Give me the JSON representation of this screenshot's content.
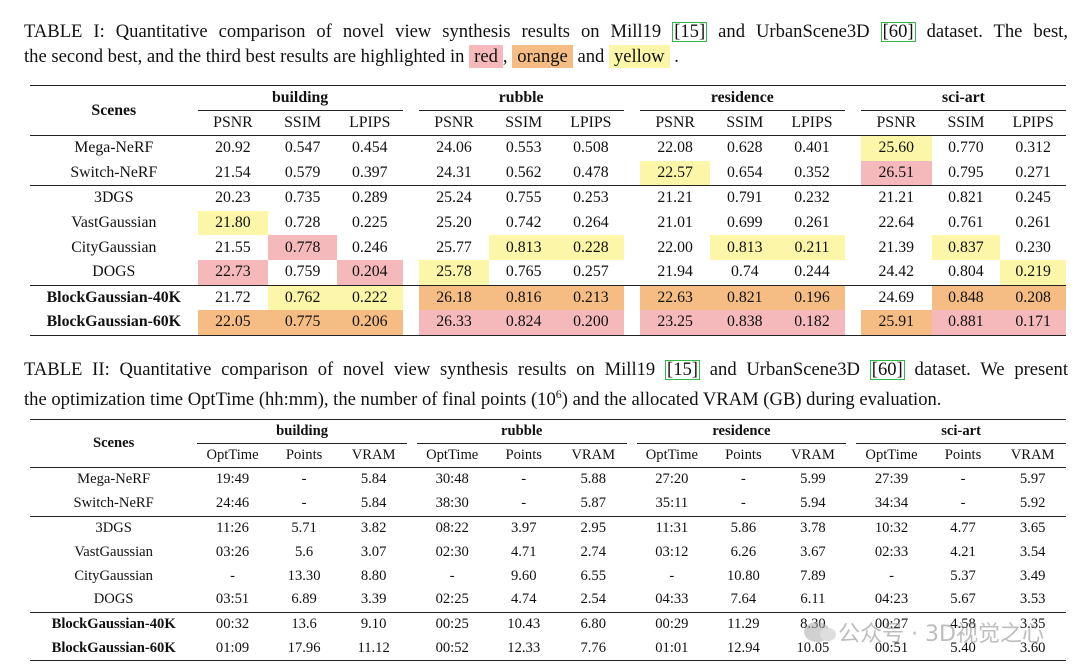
{
  "table1": {
    "caption": {
      "prefix": "TABLE I: Quantitative comparison of novel view synthesis results on Mill19",
      "cite1": "[15]",
      "mid": "and UrbanScene3D",
      "cite2": "[60]",
      "suffix": "dataset. The best,",
      "line2a": "the second best, and the third best results are highlighted in",
      "red": "red",
      "comma": ",",
      "orange": "orange",
      "and": "and",
      "yellow": "yellow",
      "end": "."
    },
    "scenes_label": "Scenes",
    "groups": [
      "building",
      "rubble",
      "residence",
      "sci-art"
    ],
    "metrics": [
      "PSNR",
      "SSIM",
      "LPIPS"
    ],
    "rows": [
      {
        "name": "Mega-NeRF",
        "bold": false,
        "sep": "none",
        "cells": [
          [
            "20.92",
            0
          ],
          [
            "0.547",
            0
          ],
          [
            "0.454",
            0
          ],
          [
            "24.06",
            0
          ],
          [
            "0.553",
            0
          ],
          [
            "0.508",
            0
          ],
          [
            "22.08",
            0
          ],
          [
            "0.628",
            0
          ],
          [
            "0.401",
            0
          ],
          [
            "25.60",
            3
          ],
          [
            "0.770",
            0
          ],
          [
            "0.312",
            0
          ]
        ]
      },
      {
        "name": "Switch-NeRF",
        "bold": false,
        "sep": "none",
        "cells": [
          [
            "21.54",
            0
          ],
          [
            "0.579",
            0
          ],
          [
            "0.397",
            0
          ],
          [
            "24.31",
            0
          ],
          [
            "0.562",
            0
          ],
          [
            "0.478",
            0
          ],
          [
            "22.57",
            3
          ],
          [
            "0.654",
            0
          ],
          [
            "0.352",
            0
          ],
          [
            "26.51",
            1
          ],
          [
            "0.795",
            0
          ],
          [
            "0.271",
            0
          ]
        ]
      },
      {
        "name": "3DGS",
        "bold": false,
        "sep": "full",
        "cells": [
          [
            "20.23",
            0
          ],
          [
            "0.735",
            0
          ],
          [
            "0.289",
            0
          ],
          [
            "25.24",
            0
          ],
          [
            "0.755",
            0
          ],
          [
            "0.253",
            0
          ],
          [
            "21.21",
            0
          ],
          [
            "0.791",
            0
          ],
          [
            "0.232",
            0
          ],
          [
            "21.21",
            0
          ],
          [
            "0.821",
            0
          ],
          [
            "0.245",
            0
          ]
        ]
      },
      {
        "name": "VastGaussian",
        "bold": false,
        "sep": "none",
        "cells": [
          [
            "21.80",
            3
          ],
          [
            "0.728",
            0
          ],
          [
            "0.225",
            0
          ],
          [
            "25.20",
            0
          ],
          [
            "0.742",
            0
          ],
          [
            "0.264",
            0
          ],
          [
            "21.01",
            0
          ],
          [
            "0.699",
            0
          ],
          [
            "0.261",
            0
          ],
          [
            "22.64",
            0
          ],
          [
            "0.761",
            0
          ],
          [
            "0.261",
            0
          ]
        ]
      },
      {
        "name": "CityGaussian",
        "bold": false,
        "sep": "none",
        "cells": [
          [
            "21.55",
            0
          ],
          [
            "0.778",
            1
          ],
          [
            "0.246",
            0
          ],
          [
            "25.77",
            0
          ],
          [
            "0.813",
            3
          ],
          [
            "0.228",
            3
          ],
          [
            "22.00",
            0
          ],
          [
            "0.813",
            3
          ],
          [
            "0.211",
            3
          ],
          [
            "21.39",
            0
          ],
          [
            "0.837",
            3
          ],
          [
            "0.230",
            0
          ]
        ]
      },
      {
        "name": "DOGS",
        "bold": false,
        "sep": "none",
        "cells": [
          [
            "22.73",
            1
          ],
          [
            "0.759",
            0
          ],
          [
            "0.204",
            1
          ],
          [
            "25.78",
            3
          ],
          [
            "0.765",
            0
          ],
          [
            "0.257",
            0
          ],
          [
            "21.94",
            0
          ],
          [
            "0.74",
            0
          ],
          [
            "0.244",
            0
          ],
          [
            "24.42",
            0
          ],
          [
            "0.804",
            0
          ],
          [
            "0.219",
            3
          ]
        ]
      },
      {
        "name": "BlockGaussian-40K",
        "bold": true,
        "sep": "full",
        "cells": [
          [
            "21.72",
            0
          ],
          [
            "0.762",
            3
          ],
          [
            "0.222",
            3
          ],
          [
            "26.18",
            2
          ],
          [
            "0.816",
            2
          ],
          [
            "0.213",
            2
          ],
          [
            "22.63",
            2
          ],
          [
            "0.821",
            2
          ],
          [
            "0.196",
            2
          ],
          [
            "24.69",
            0
          ],
          [
            "0.848",
            2
          ],
          [
            "0.208",
            2
          ]
        ]
      },
      {
        "name": "BlockGaussian-60K",
        "bold": true,
        "sep": "none",
        "cells": [
          [
            "22.05",
            2
          ],
          [
            "0.775",
            2
          ],
          [
            "0.206",
            2
          ],
          [
            "26.33",
            1
          ],
          [
            "0.824",
            1
          ],
          [
            "0.200",
            1
          ],
          [
            "23.25",
            1
          ],
          [
            "0.838",
            1
          ],
          [
            "0.182",
            1
          ],
          [
            "25.91",
            2
          ],
          [
            "0.881",
            1
          ],
          [
            "0.171",
            1
          ]
        ]
      }
    ]
  },
  "table2": {
    "caption": {
      "prefix": "TABLE II: Quantitative comparison of novel view synthesis results on Mill19",
      "cite1": "[15]",
      "mid": "and UrbanScene3D",
      "cite2": "[60]",
      "suffix": "dataset. We present",
      "line2a": "the optimization time OptTime (hh:mm), the number of final points (10",
      "sup": "6",
      "line2b": ") and the allocated VRAM (GB) during evaluation."
    },
    "scenes_label": "Scenes",
    "groups": [
      "building",
      "rubble",
      "residence",
      "sci-art"
    ],
    "metrics": [
      "OptTime",
      "Points",
      "VRAM"
    ],
    "rows": [
      {
        "name": "Mega-NeRF",
        "bold": false,
        "sep": "none",
        "cells": [
          "19:49",
          "-",
          "5.84",
          "30:48",
          "-",
          "5.88",
          "27:20",
          "-",
          "5.99",
          "27:39",
          "-",
          "5.97"
        ]
      },
      {
        "name": "Switch-NeRF",
        "bold": false,
        "sep": "none",
        "cells": [
          "24:46",
          "-",
          "5.84",
          "38:30",
          "-",
          "5.87",
          "35:11",
          "-",
          "5.94",
          "34:34",
          "-",
          "5.92"
        ]
      },
      {
        "name": "3DGS",
        "bold": false,
        "sep": "full",
        "cells": [
          "11:26",
          "5.71",
          "3.82",
          "08:22",
          "3.97",
          "2.95",
          "11:31",
          "5.86",
          "3.78",
          "10:32",
          "4.77",
          "3.65"
        ]
      },
      {
        "name": "VastGaussian",
        "bold": false,
        "sep": "none",
        "cells": [
          "03:26",
          "5.6",
          "3.07",
          "02:30",
          "4.71",
          "2.74",
          "03:12",
          "6.26",
          "3.67",
          "02:33",
          "4.21",
          "3.54"
        ]
      },
      {
        "name": "CityGaussian",
        "bold": false,
        "sep": "none",
        "cells": [
          "-",
          "13.30",
          "8.80",
          "-",
          "9.60",
          "6.55",
          "-",
          "10.80",
          "7.89",
          "-",
          "5.37",
          "3.49"
        ]
      },
      {
        "name": "DOGS",
        "bold": false,
        "sep": "none",
        "cells": [
          "03:51",
          "6.89",
          "3.39",
          "02:25",
          "4.74",
          "2.54",
          "04:33",
          "7.64",
          "6.11",
          "04:23",
          "5.67",
          "3.53"
        ]
      },
      {
        "name": "BlockGaussian-40K",
        "bold": true,
        "sep": "full",
        "cells": [
          "00:32",
          "13.6",
          "9.10",
          "00:25",
          "10.43",
          "6.80",
          "00:29",
          "11.29",
          "8.30",
          "00:27",
          "4.58",
          "3.35"
        ]
      },
      {
        "name": "BlockGaussian-60K",
        "bold": true,
        "sep": "none",
        "cells": [
          "01:09",
          "17.96",
          "11.12",
          "00:52",
          "12.33",
          "7.76",
          "01:01",
          "12.94",
          "10.05",
          "00:51",
          "5.40",
          "3.60"
        ]
      }
    ]
  },
  "watermark": {
    "text": "公众号 · 3D视觉之心",
    "icon": "wechat-icon"
  },
  "colors": {
    "red": "#f5b9bb",
    "orange": "#f5bd83",
    "yellow": "#fbf6a8",
    "cite_border": "#33b64a"
  }
}
